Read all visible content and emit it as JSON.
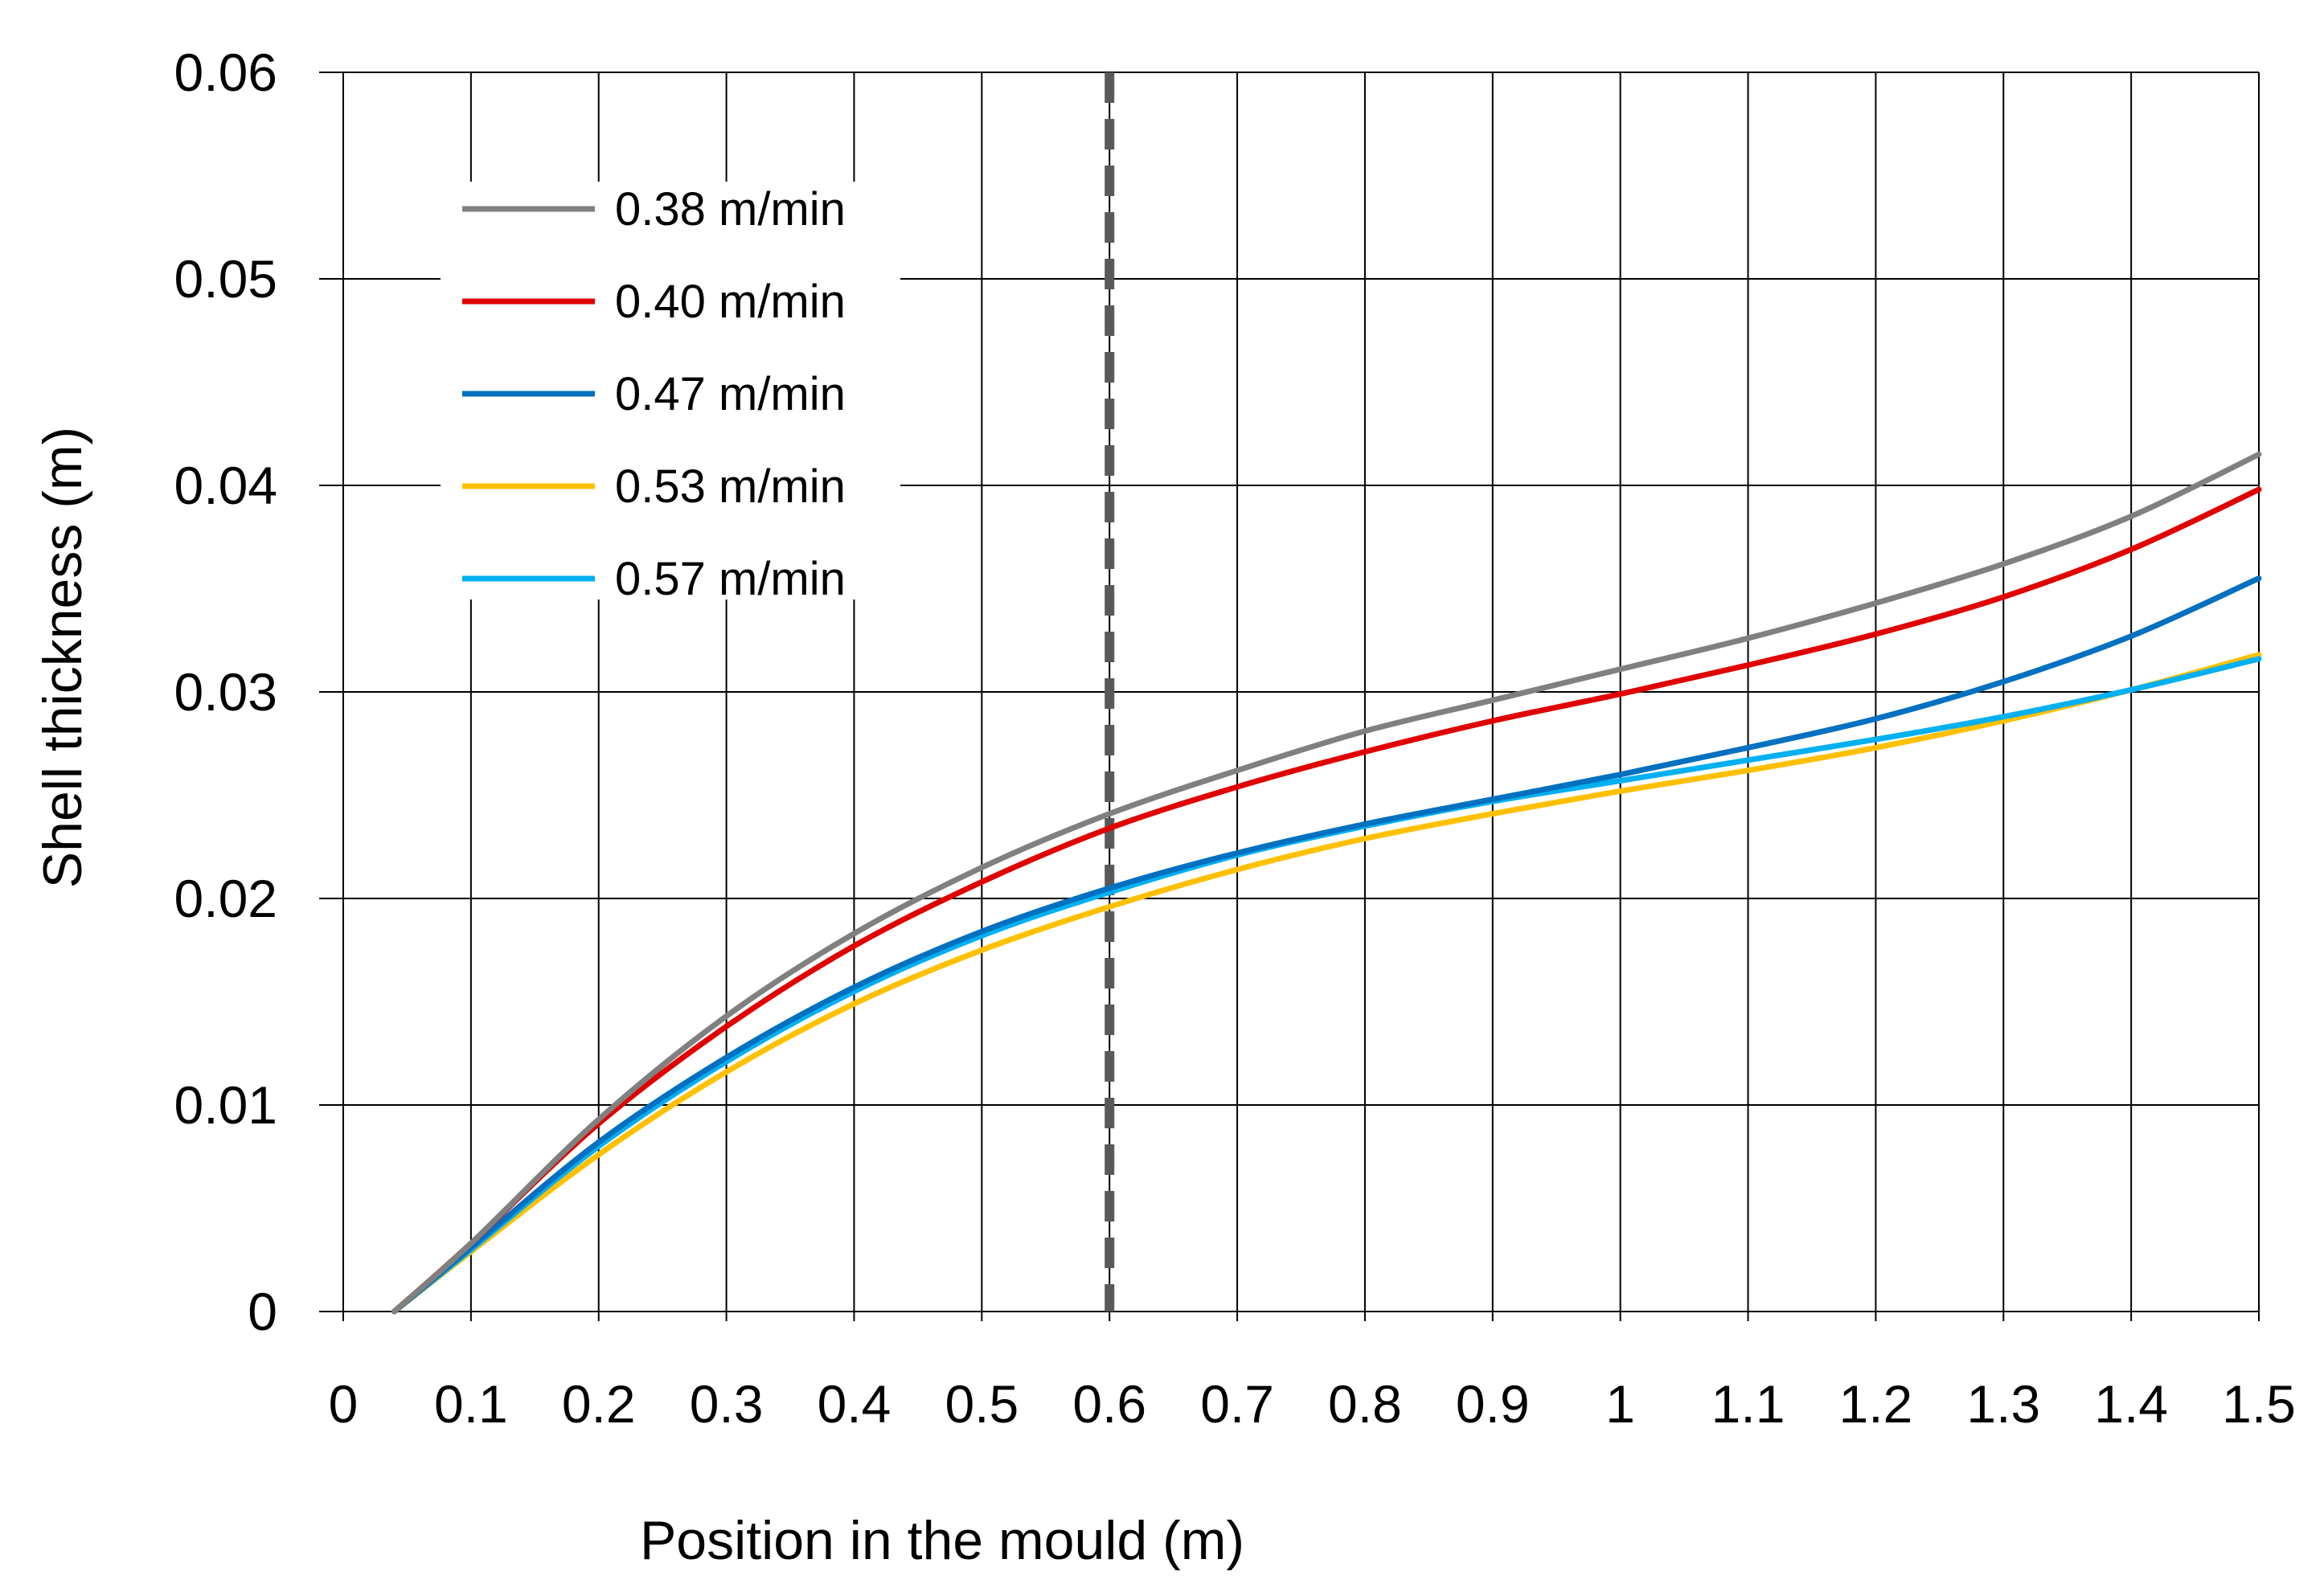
{
  "chart_data": {
    "type": "line",
    "title": "",
    "xlabel": "Position in the mould  (m)",
    "ylabel": "Shell thickness  (m)",
    "xlim": [
      0,
      1.5
    ],
    "ylim": [
      0,
      0.06
    ],
    "x_ticks": [
      "0",
      "0.1",
      "0.2",
      "0.3",
      "0.4",
      "0.5",
      "0.6",
      "0.7",
      "0.8",
      "0.9",
      "1",
      "1.1",
      "1.2",
      "1.3",
      "1.4",
      "1.5"
    ],
    "y_ticks": [
      "0",
      "0.01",
      "0.02",
      "0.03",
      "0.04",
      "0.05",
      "0.06"
    ],
    "grid": true,
    "legend_position": "top-left",
    "reference_line": {
      "x": 0.6,
      "style": "dashed",
      "color": "#595959"
    },
    "x": [
      0.04,
      0.1,
      0.2,
      0.3,
      0.4,
      0.5,
      0.6,
      0.7,
      0.8,
      0.9,
      1.0,
      1.1,
      1.2,
      1.3,
      1.4,
      1.5
    ],
    "series": [
      {
        "name": "0.38 m/min",
        "color": "#808080",
        "values": [
          0,
          0.0033,
          0.0093,
          0.0143,
          0.0183,
          0.0215,
          0.0241,
          0.0262,
          0.0281,
          0.0296,
          0.0311,
          0.0326,
          0.0343,
          0.0362,
          0.0385,
          0.0415
        ]
      },
      {
        "name": "0.40 m/min",
        "color": "#E00000",
        "values": [
          0,
          0.0033,
          0.0091,
          0.0138,
          0.0177,
          0.0208,
          0.0234,
          0.0254,
          0.0271,
          0.0286,
          0.0299,
          0.0313,
          0.0328,
          0.0346,
          0.0369,
          0.0398
        ]
      },
      {
        "name": "0.47 m/min",
        "color": "#0070C0",
        "values": [
          0,
          0.0031,
          0.0082,
          0.0123,
          0.0157,
          0.0184,
          0.0205,
          0.0222,
          0.0236,
          0.0248,
          0.026,
          0.0273,
          0.0287,
          0.0305,
          0.0327,
          0.0355
        ]
      },
      {
        "name": "0.53 m/min",
        "color": "#FFC000",
        "values": [
          0,
          0.0029,
          0.0076,
          0.0116,
          0.0149,
          0.0175,
          0.0196,
          0.0214,
          0.0229,
          0.0241,
          0.0252,
          0.0262,
          0.0273,
          0.0286,
          0.0301,
          0.0318
        ]
      },
      {
        "name": "0.57 m/min",
        "color": "#00B0F0",
        "values": [
          0,
          0.003,
          0.008,
          0.0121,
          0.0155,
          0.0182,
          0.0203,
          0.0221,
          0.0235,
          0.0247,
          0.0257,
          0.0267,
          0.0277,
          0.0288,
          0.0301,
          0.0316
        ]
      }
    ]
  }
}
